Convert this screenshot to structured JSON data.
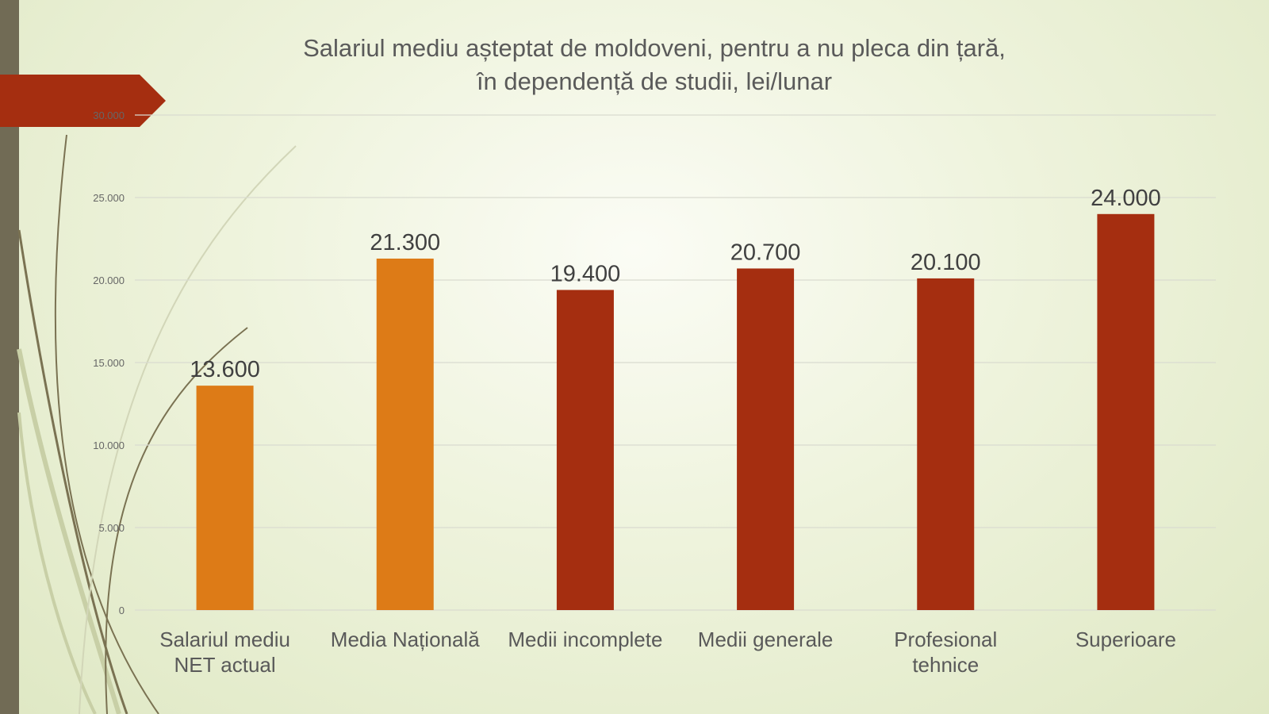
{
  "chart_data": {
    "type": "bar",
    "title_lines": [
      "Salariul mediu așteptat de moldoveni, pentru a nu pleca din țară,",
      "în dependență de studii, lei/lunar"
    ],
    "categories": [
      [
        "Salariul mediu",
        "NET actual"
      ],
      [
        "Media Națională"
      ],
      [
        "Medii incomplete"
      ],
      [
        "Medii  generale"
      ],
      [
        "Profesional",
        "tehnice"
      ],
      [
        "Superioare"
      ]
    ],
    "values": [
      13600,
      21300,
      19400,
      20700,
      20100,
      24000
    ],
    "data_labels": [
      "13.600",
      "21.300",
      "19.400",
      "20.700",
      "20.100",
      "24.000"
    ],
    "bar_colors": [
      "#DD7B17",
      "#DD7B17",
      "#A52E10",
      "#A52E10",
      "#A52E10",
      "#A52E10"
    ],
    "yticks": [
      0,
      5000,
      10000,
      15000,
      20000,
      25000,
      30000
    ],
    "ytick_labels": [
      "0",
      "5.000",
      "10.000",
      "15.000",
      "20.000",
      "25.000",
      "30.000"
    ],
    "ylim": [
      0,
      30000
    ],
    "grid": true,
    "xlabel": "",
    "ylabel": ""
  }
}
